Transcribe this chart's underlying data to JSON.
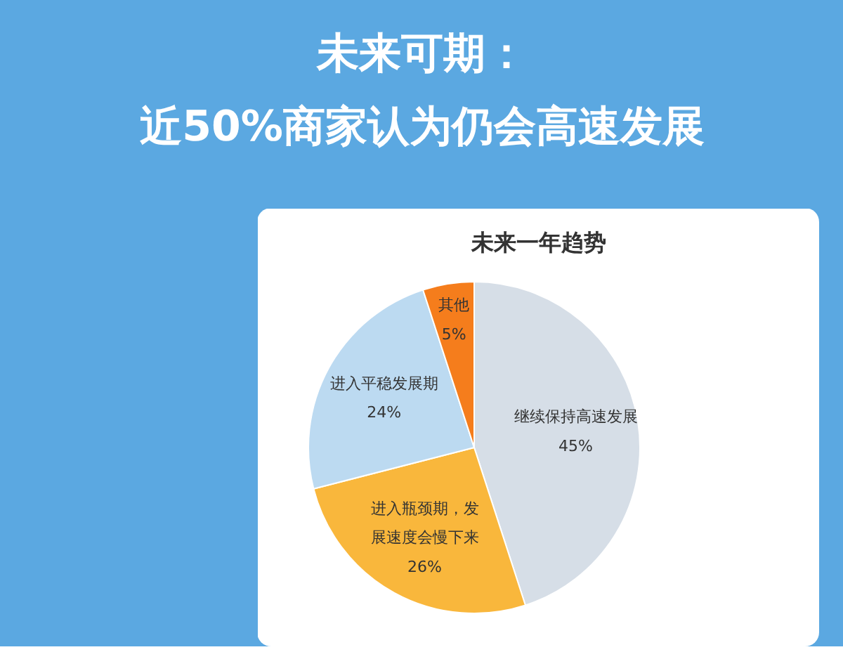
{
  "chart_data": {
    "type": "pie",
    "title": "未来可期：近50%商家认为仍会高速发展",
    "subtitle": "未来一年趋势",
    "categories": [
      "继续保持高速发展",
      "进入瓶颈期，发展速度会慢下来",
      "进入平稳发展期",
      "其他"
    ],
    "values": [
      45,
      26,
      24,
      5
    ],
    "colors": [
      "#d6dee7",
      "#f9b73c",
      "#bcdaf1",
      "#f57d1c"
    ],
    "value_labels": [
      "45%",
      "26%",
      "24%",
      "5%"
    ]
  }
}
